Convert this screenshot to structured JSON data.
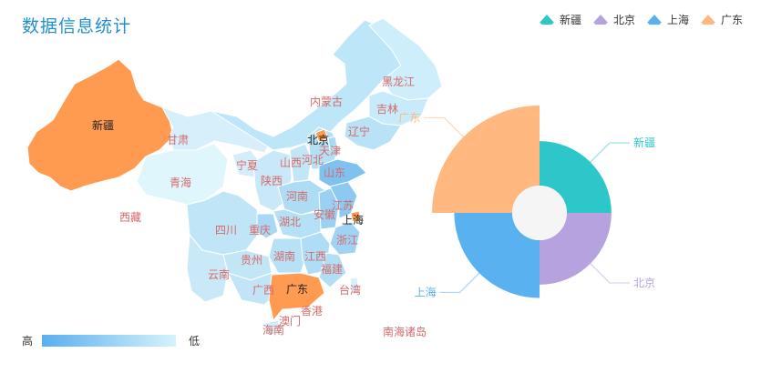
{
  "title": "数据信息统计",
  "colors": {
    "xinjiang": "#2ec7c9",
    "beijing": "#b6a2de",
    "shanghai": "#5ab1ef",
    "guangdong": "#ffb980",
    "highlight": "#ff9b50",
    "scale_high": "#5aaef0",
    "scale_low": "#d5f3fb"
  },
  "visual_map": {
    "high_label": "高",
    "low_label": "低"
  },
  "chart_data": [
    {
      "type": "map",
      "region": "China",
      "highlighted": [
        "新疆",
        "北京",
        "上海",
        "广东"
      ],
      "labels": [
        "新疆",
        "甘肃",
        "青海",
        "西藏",
        "宁夏",
        "陕西",
        "内蒙古",
        "北京",
        "天津",
        "河北",
        "山西",
        "山东",
        "河南",
        "黑龙江",
        "吉林",
        "辽宁",
        "四川",
        "重庆",
        "湖北",
        "安徽",
        "江苏",
        "上海",
        "浙江",
        "湖南",
        "江西",
        "福建",
        "贵州",
        "云南",
        "广西",
        "广东",
        "台湾",
        "香港",
        "澳门",
        "海南",
        "南海诸岛"
      ]
    },
    {
      "type": "pie",
      "rose_type": "radius",
      "legend": [
        "新疆",
        "北京",
        "上海",
        "广东"
      ],
      "series": [
        {
          "name": "新疆",
          "value": 1
        },
        {
          "name": "北京",
          "value": 1
        },
        {
          "name": "上海",
          "value": 1.3
        },
        {
          "name": "广东",
          "value": 1.8
        }
      ]
    }
  ]
}
